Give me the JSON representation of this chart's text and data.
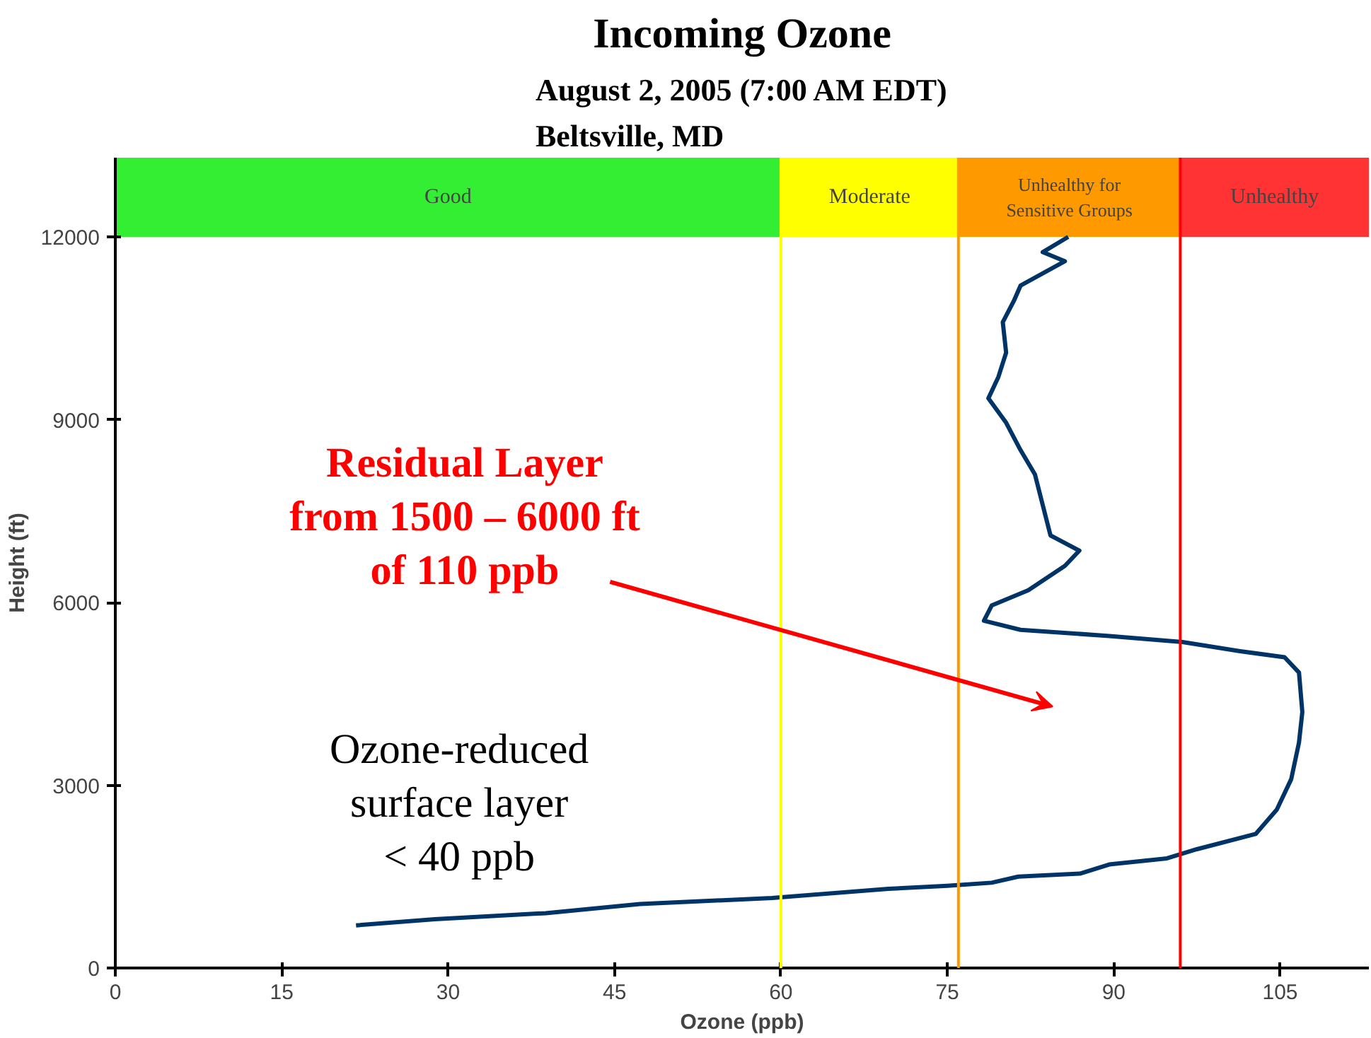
{
  "chart_data": {
    "type": "line",
    "title": "Incoming Ozone",
    "subtitle": "August 2, 2005 (7:00 AM EDT)\nBeltsville, MD",
    "xlabel": "Ozone (ppb)",
    "ylabel": "Height (ft)",
    "series": [
      {
        "color": "#003366",
        "x": [
          21.7,
          28.8,
          38.8,
          47.3,
          59.2,
          69.7,
          75.0,
          79.0,
          81.4,
          87.0,
          89.6,
          94.8,
          97.5,
          102.8,
          104.7,
          106.0,
          106.7,
          107.0,
          106.7,
          105.4,
          101.4,
          96.2,
          89.6,
          81.6,
          78.3,
          79.0,
          82.3,
          85.6,
          86.9,
          84.3,
          83.6,
          82.9,
          81.6,
          80.3,
          78.7,
          79.6,
          80.3,
          80.0,
          81.0,
          81.6,
          85.6,
          83.6,
          85.9
        ],
        "values": [
          700,
          800,
          900,
          1050,
          1150,
          1300,
          1350,
          1400,
          1500,
          1550,
          1700,
          1800,
          1950,
          2200,
          2600,
          3100,
          3700,
          4200,
          4850,
          5100,
          5200,
          5350,
          5450,
          5550,
          5700,
          5950,
          6200,
          6600,
          6850,
          7100,
          7600,
          8100,
          8500,
          8950,
          9350,
          9700,
          10100,
          10600,
          10950,
          11200,
          11600,
          11750,
          12000
        ]
      }
    ],
    "xlim": [
      0,
      113
    ],
    "ylim": [
      0,
      13300
    ],
    "xticks": [
      0,
      15,
      30,
      45,
      60,
      75,
      90,
      105
    ],
    "yticks": [
      0,
      3000,
      6000,
      9000,
      12000
    ],
    "line_style": "solid",
    "ref_lines": [
      {
        "axis": "x",
        "value": 60,
        "color": "#ffff00"
      },
      {
        "axis": "x",
        "value": 76,
        "color": "#ff9900"
      },
      {
        "axis": "x",
        "value": 96,
        "color": "#ff0000"
      }
    ],
    "bands": [
      {
        "axis": "x",
        "from": 0,
        "to": 60,
        "label": "Good",
        "color": "#33ee33"
      },
      {
        "axis": "x",
        "from": 60,
        "to": 76,
        "label": "Moderate",
        "color": "#ffff00"
      },
      {
        "axis": "x",
        "from": 76,
        "to": 96,
        "label": "Unhealthy for\nSensitive Groups",
        "color": "#ff9900"
      },
      {
        "axis": "x",
        "from": 96,
        "to": 113,
        "label": "Unhealthy",
        "color": "#ff3333"
      }
    ],
    "annotations": [
      "Residual Layer\nfrom 1500 – 6000 ft\nof 110 ppb",
      "Ozone-reduced\nsurface layer\n< 40 ppb"
    ]
  }
}
